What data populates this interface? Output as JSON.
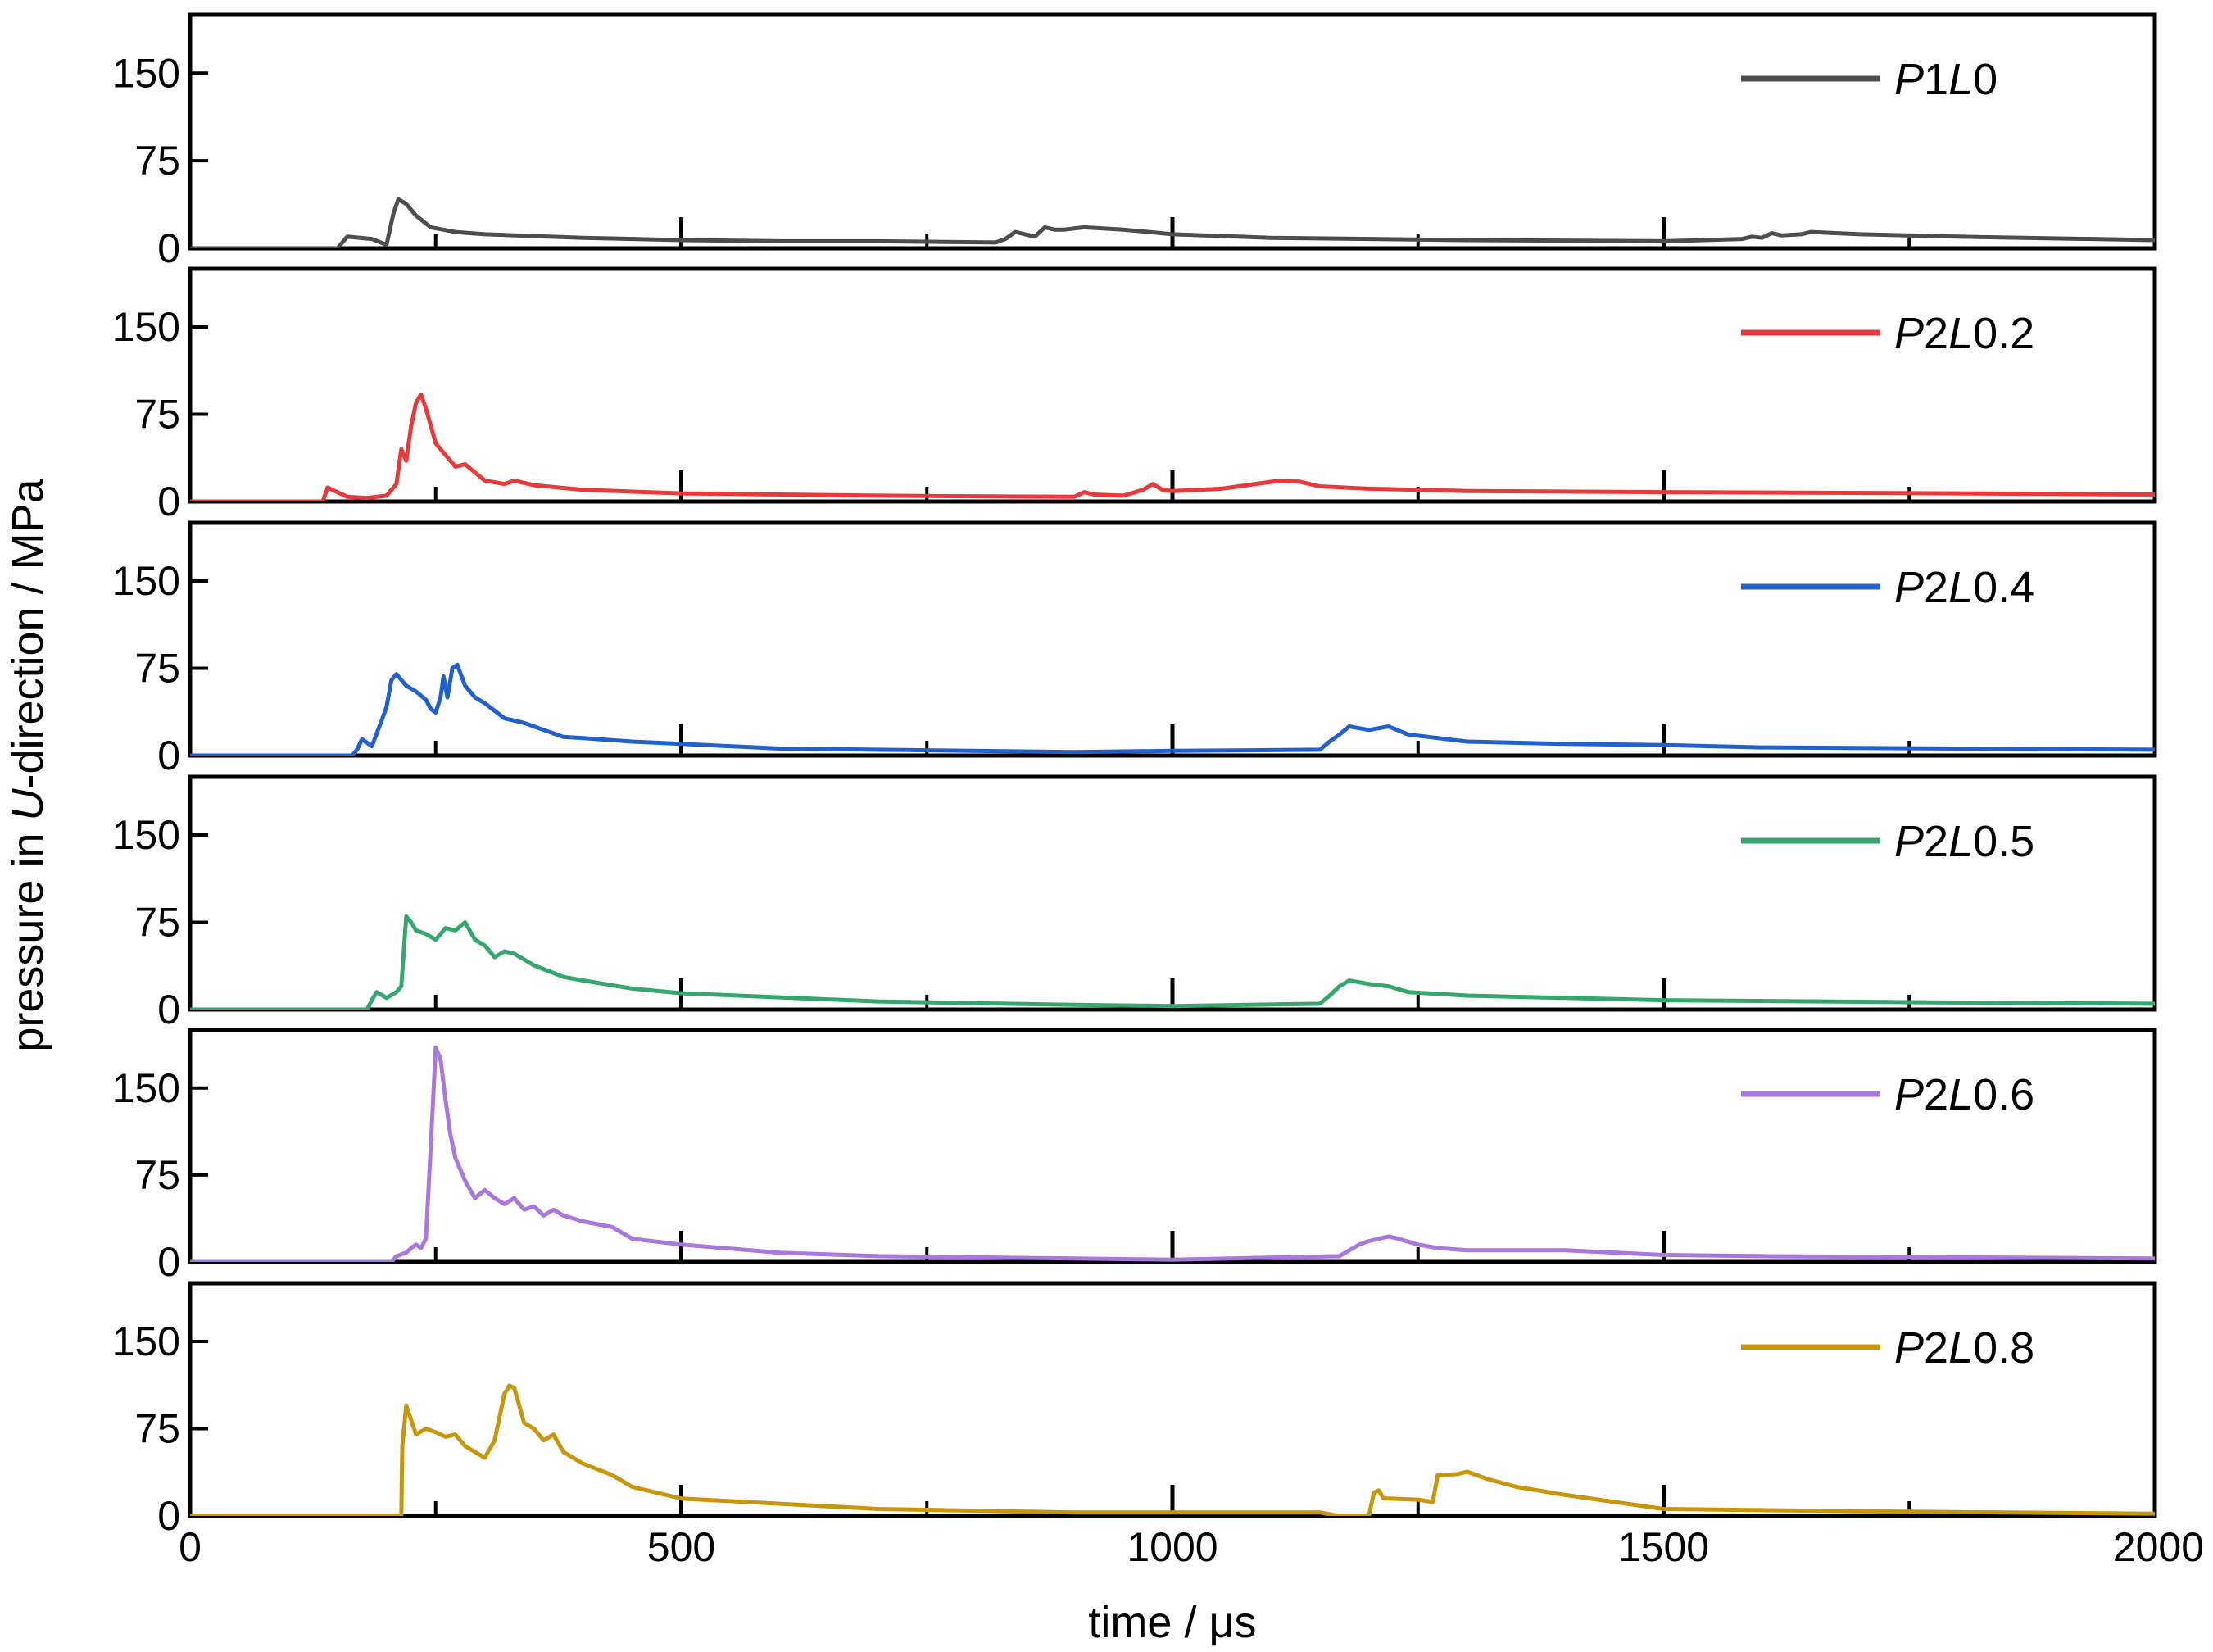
{
  "chart_data": {
    "type": "line",
    "xlabel": "time / μs",
    "ylabel": "pressure in U-direction / MPa",
    "ylabel_parts": [
      "pressure in ",
      "U",
      "-direction / MPa"
    ],
    "xlim": [
      0,
      2000
    ],
    "ylim": [
      0,
      200
    ],
    "x_ticks": [
      0,
      500,
      1000,
      1500,
      2000
    ],
    "x_minor_ticks": [
      250,
      750,
      1250,
      1750
    ],
    "y_ticks": [
      0,
      75,
      150
    ],
    "grid": false,
    "legend_position": "top-right",
    "panels": [
      {
        "legend": {
          "prefix": "P",
          "num": "1",
          "letter": "L",
          "suffix": "0"
        },
        "color": "#4d4d4d",
        "series": {
          "name": "P1L0",
          "x": [
            0,
            150,
            160,
            185,
            200,
            207,
            212,
            220,
            230,
            245,
            270,
            300,
            400,
            500,
            600,
            700,
            820,
            830,
            840,
            860,
            870,
            880,
            890,
            910,
            950,
            1000,
            1100,
            1300,
            1500,
            1580,
            1590,
            1600,
            1610,
            1620,
            1640,
            1650,
            1700,
            1800,
            2000
          ],
          "y": [
            0,
            0,
            10,
            8,
            3,
            30,
            42,
            38,
            28,
            18,
            14,
            12,
            9,
            7,
            6,
            6,
            5,
            8,
            14,
            10,
            18,
            16,
            16,
            18,
            16,
            12,
            9,
            7,
            6,
            8,
            10,
            9,
            13,
            11,
            12,
            14,
            12,
            10,
            7
          ]
        }
      },
      {
        "legend": {
          "prefix": "P",
          "num": "2",
          "letter": "L",
          "suffix": "0.2"
        },
        "color": "#e8393b",
        "series": {
          "name": "P2L0.2",
          "x": [
            0,
            135,
            140,
            150,
            160,
            180,
            200,
            210,
            215,
            220,
            225,
            230,
            235,
            240,
            250,
            260,
            270,
            280,
            290,
            300,
            320,
            330,
            350,
            400,
            500,
            700,
            900,
            910,
            920,
            950,
            970,
            980,
            990,
            1000,
            1050,
            1110,
            1130,
            1150,
            1200,
            1300,
            1500,
            1800,
            2000
          ],
          "y": [
            0,
            0,
            12,
            8,
            4,
            3,
            5,
            15,
            45,
            35,
            65,
            85,
            92,
            80,
            50,
            40,
            30,
            32,
            25,
            18,
            15,
            18,
            14,
            10,
            7,
            5,
            4,
            8,
            6,
            5,
            10,
            15,
            10,
            9,
            11,
            18,
            17,
            13,
            11,
            9,
            8,
            7,
            6
          ]
        }
      },
      {
        "legend": {
          "prefix": "P",
          "num": "2",
          "letter": "L",
          "suffix": "0.4"
        },
        "color": "#2161cf",
        "series": {
          "name": "P2L0.4",
          "x": [
            0,
            165,
            170,
            175,
            185,
            195,
            200,
            205,
            210,
            220,
            230,
            240,
            245,
            250,
            255,
            258,
            262,
            267,
            272,
            280,
            290,
            300,
            320,
            340,
            360,
            380,
            400,
            450,
            500,
            600,
            900,
            1000,
            1150,
            1160,
            1170,
            1180,
            1200,
            1220,
            1240,
            1270,
            1300,
            1400,
            1500,
            1600,
            1800,
            2000
          ],
          "y": [
            0,
            0,
            5,
            14,
            8,
            30,
            42,
            65,
            70,
            60,
            55,
            48,
            40,
            37,
            50,
            68,
            50,
            75,
            78,
            60,
            50,
            45,
            32,
            28,
            22,
            16,
            15,
            12,
            10,
            6,
            3,
            4,
            5,
            12,
            18,
            25,
            22,
            25,
            18,
            15,
            12,
            10,
            9,
            7,
            6,
            5
          ]
        }
      },
      {
        "legend": {
          "prefix": "P",
          "num": "2",
          "letter": "L",
          "suffix": "0.5"
        },
        "color": "#35a66d",
        "series": {
          "name": "P2L0.5",
          "x": [
            0,
            180,
            185,
            190,
            200,
            210,
            215,
            220,
            225,
            230,
            240,
            250,
            260,
            270,
            280,
            290,
            300,
            310,
            320,
            330,
            350,
            380,
            400,
            450,
            500,
            700,
            900,
            1000,
            1150,
            1160,
            1170,
            1180,
            1200,
            1220,
            1240,
            1300,
            1400,
            1500,
            1800,
            2000
          ],
          "y": [
            0,
            0,
            8,
            15,
            10,
            15,
            20,
            80,
            75,
            68,
            65,
            60,
            70,
            68,
            75,
            60,
            55,
            45,
            50,
            48,
            38,
            28,
            25,
            18,
            14,
            7,
            4,
            3,
            5,
            12,
            20,
            25,
            22,
            20,
            15,
            12,
            10,
            8,
            6,
            5
          ]
        }
      },
      {
        "legend": {
          "prefix": "P",
          "num": "2",
          "letter": "L",
          "suffix": "0.6"
        },
        "color": "#a877e0",
        "series": {
          "name": "P2L0.6",
          "x": [
            0,
            205,
            210,
            220,
            225,
            230,
            235,
            240,
            245,
            250,
            255,
            260,
            265,
            270,
            280,
            290,
            300,
            310,
            320,
            330,
            340,
            350,
            360,
            370,
            380,
            400,
            430,
            450,
            500,
            600,
            700,
            900,
            1000,
            1170,
            1180,
            1190,
            1200,
            1220,
            1230,
            1250,
            1270,
            1300,
            1400,
            1500,
            1600,
            1800,
            2000
          ],
          "y": [
            0,
            0,
            5,
            8,
            12,
            15,
            12,
            20,
            100,
            185,
            175,
            140,
            110,
            90,
            70,
            55,
            62,
            55,
            50,
            55,
            45,
            48,
            40,
            45,
            40,
            35,
            30,
            20,
            15,
            8,
            5,
            3,
            2,
            5,
            10,
            15,
            18,
            22,
            20,
            15,
            12,
            10,
            10,
            6,
            5,
            4,
            3
          ]
        }
      },
      {
        "legend": {
          "prefix": "P",
          "num": "2",
          "letter": "L",
          "suffix": "0.8"
        },
        "color": "#c8960a",
        "series": {
          "name": "P2L0.8",
          "x": [
            0,
            215,
            216,
            220,
            230,
            240,
            250,
            260,
            270,
            280,
            290,
            300,
            310,
            320,
            325,
            330,
            340,
            350,
            360,
            370,
            380,
            400,
            430,
            450,
            500,
            700,
            900,
            1150,
            1170,
            1200,
            1205,
            1210,
            1215,
            1220,
            1250,
            1265,
            1270,
            1290,
            1300,
            1320,
            1350,
            1400,
            1500,
            1700,
            2000
          ],
          "y": [
            0,
            0,
            60,
            95,
            70,
            75,
            72,
            68,
            70,
            60,
            55,
            50,
            65,
            105,
            112,
            110,
            80,
            75,
            65,
            70,
            55,
            45,
            35,
            25,
            15,
            6,
            3,
            3,
            0,
            0,
            20,
            22,
            15,
            15,
            14,
            12,
            35,
            36,
            38,
            32,
            25,
            18,
            6,
            4,
            2
          ]
        }
      }
    ]
  }
}
